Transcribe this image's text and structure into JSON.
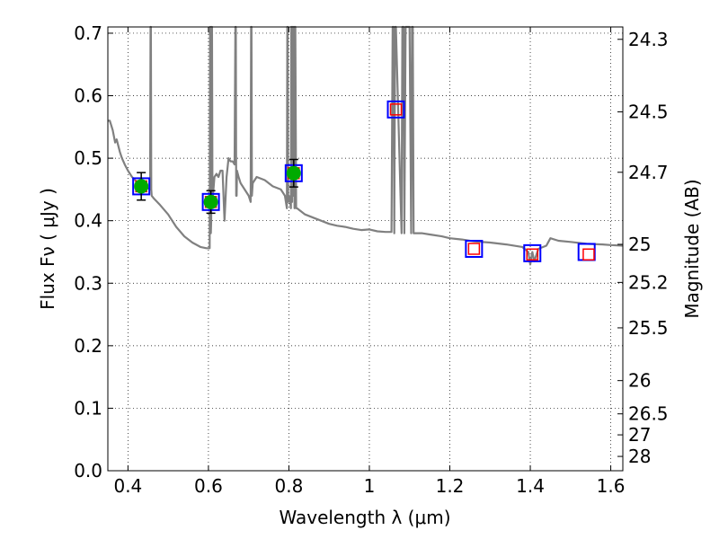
{
  "chart_data": {
    "type": "scatter",
    "xlabel": "Wavelength  λ (μm)",
    "ylabel": "Flux  Fν  ( μJy )",
    "y2label": "Magnitude (AB)",
    "xlim": [
      0.35,
      1.63
    ],
    "ylim": [
      0.0,
      0.71
    ],
    "xticks": [
      0.4,
      0.6,
      0.8,
      1.0,
      1.2,
      1.4,
      1.6
    ],
    "xtick_labels": [
      "0.4",
      "0.6",
      "0.8",
      "1",
      "1.2",
      "1.4",
      "1.6"
    ],
    "yticks": [
      0.0,
      0.1,
      0.2,
      0.3,
      0.4,
      0.5,
      0.6,
      0.7
    ],
    "ytick_labels": [
      "0.0",
      "0.1",
      "0.2",
      "0.3",
      "0.4",
      "0.5",
      "0.6",
      "0.7"
    ],
    "y2ticks": [
      {
        "label": "24.3",
        "flux": 0.6902
      },
      {
        "label": "24.5",
        "flux": 0.5741
      },
      {
        "label": "24.7",
        "flux": 0.4775
      },
      {
        "label": "25",
        "flux": 0.3622
      },
      {
        "label": "25.2",
        "flux": 0.3013
      },
      {
        "label": "25.5",
        "flux": 0.2286
      },
      {
        "label": "26",
        "flux": 0.1442
      },
      {
        "label": "26.5",
        "flux": 0.091
      },
      {
        "label": "27",
        "flux": 0.0574
      },
      {
        "label": "28",
        "flux": 0.0229
      }
    ],
    "grid": true,
    "series": [
      {
        "style": "line",
        "color": "#808080",
        "x": [
          0.35,
          0.355,
          0.362,
          0.368,
          0.372,
          0.38,
          0.385,
          0.392,
          0.4,
          0.41,
          0.425,
          0.44,
          0.455,
          0.456,
          0.457,
          0.458,
          0.459,
          0.465,
          0.48,
          0.5,
          0.52,
          0.54,
          0.56,
          0.58,
          0.595,
          0.6,
          0.603,
          0.604,
          0.605,
          0.606,
          0.607,
          0.608,
          0.609,
          0.61,
          0.615,
          0.62,
          0.625,
          0.63,
          0.635,
          0.64,
          0.645,
          0.65,
          0.655,
          0.66,
          0.665,
          0.667,
          0.668,
          0.669,
          0.67,
          0.671,
          0.675,
          0.68,
          0.69,
          0.7,
          0.705,
          0.706,
          0.707,
          0.708,
          0.71,
          0.72,
          0.74,
          0.76,
          0.78,
          0.79,
          0.795,
          0.796,
          0.797,
          0.798,
          0.8,
          0.803,
          0.805,
          0.806,
          0.807,
          0.808,
          0.809,
          0.81,
          0.811,
          0.812,
          0.813,
          0.814,
          0.815,
          0.816,
          0.818,
          0.82,
          0.83,
          0.84,
          0.86,
          0.88,
          0.9,
          0.92,
          0.94,
          0.96,
          0.98,
          1.0,
          1.02,
          1.04,
          1.055,
          1.058,
          1.06,
          1.062,
          1.064,
          1.066,
          1.08,
          1.082,
          1.085,
          1.087,
          1.09,
          1.1,
          1.104,
          1.106,
          1.108,
          1.11,
          1.13,
          1.15,
          1.18,
          1.2,
          1.23,
          1.26,
          1.3,
          1.34,
          1.38,
          1.395,
          1.4,
          1.405,
          1.41,
          1.42,
          1.44,
          1.45,
          1.47,
          1.5,
          1.54,
          1.58,
          1.6,
          1.63
        ],
        "y": [
          0.56,
          0.56,
          0.545,
          0.525,
          0.53,
          0.51,
          0.5,
          0.49,
          0.48,
          0.47,
          0.46,
          0.455,
          0.45,
          0.71,
          0.71,
          0.45,
          0.44,
          0.435,
          0.425,
          0.41,
          0.39,
          0.375,
          0.365,
          0.358,
          0.356,
          0.356,
          0.356,
          0.71,
          0.71,
          0.38,
          0.4,
          0.71,
          0.71,
          0.43,
          0.47,
          0.475,
          0.47,
          0.48,
          0.48,
          0.4,
          0.47,
          0.5,
          0.495,
          0.495,
          0.49,
          0.71,
          0.71,
          0.44,
          0.44,
          0.48,
          0.47,
          0.46,
          0.45,
          0.44,
          0.43,
          0.71,
          0.71,
          0.44,
          0.46,
          0.47,
          0.465,
          0.455,
          0.45,
          0.44,
          0.42,
          0.71,
          0.71,
          0.43,
          0.44,
          0.43,
          0.42,
          0.71,
          0.71,
          0.43,
          0.71,
          0.71,
          0.44,
          0.71,
          0.71,
          0.42,
          0.71,
          0.71,
          0.42,
          0.42,
          0.415,
          0.41,
          0.405,
          0.4,
          0.395,
          0.392,
          0.39,
          0.387,
          0.385,
          0.386,
          0.383,
          0.382,
          0.382,
          0.71,
          0.71,
          0.38,
          0.71,
          0.71,
          0.38,
          0.71,
          0.71,
          0.38,
          0.71,
          0.71,
          0.38,
          0.71,
          0.71,
          0.38,
          0.38,
          0.378,
          0.375,
          0.372,
          0.37,
          0.367,
          0.365,
          0.362,
          0.358,
          0.35,
          0.33,
          0.35,
          0.335,
          0.355,
          0.36,
          0.372,
          0.368,
          0.366,
          0.363,
          0.362,
          0.361,
          0.36
        ]
      },
      {
        "style": "squares-blue",
        "color": "#0000ff",
        "x": [
          0.433,
          0.606,
          0.812,
          1.066,
          1.26,
          1.405,
          1.54
        ],
        "y": [
          0.455,
          0.43,
          0.476,
          0.578,
          0.355,
          0.348,
          0.35
        ]
      },
      {
        "style": "squares-red",
        "color": "#ff0000",
        "x": [
          0.433,
          0.606,
          0.812,
          1.066,
          1.26,
          1.405,
          1.545
        ],
        "y": [
          0.455,
          0.43,
          0.476,
          0.578,
          0.355,
          0.346,
          0.346
        ]
      },
      {
        "style": "points-with-errors",
        "color": "#00aa00",
        "x": [
          0.433,
          0.606,
          0.812
        ],
        "y": [
          0.455,
          0.43,
          0.476
        ],
        "yerr": [
          0.022,
          0.018,
          0.022
        ]
      }
    ]
  }
}
